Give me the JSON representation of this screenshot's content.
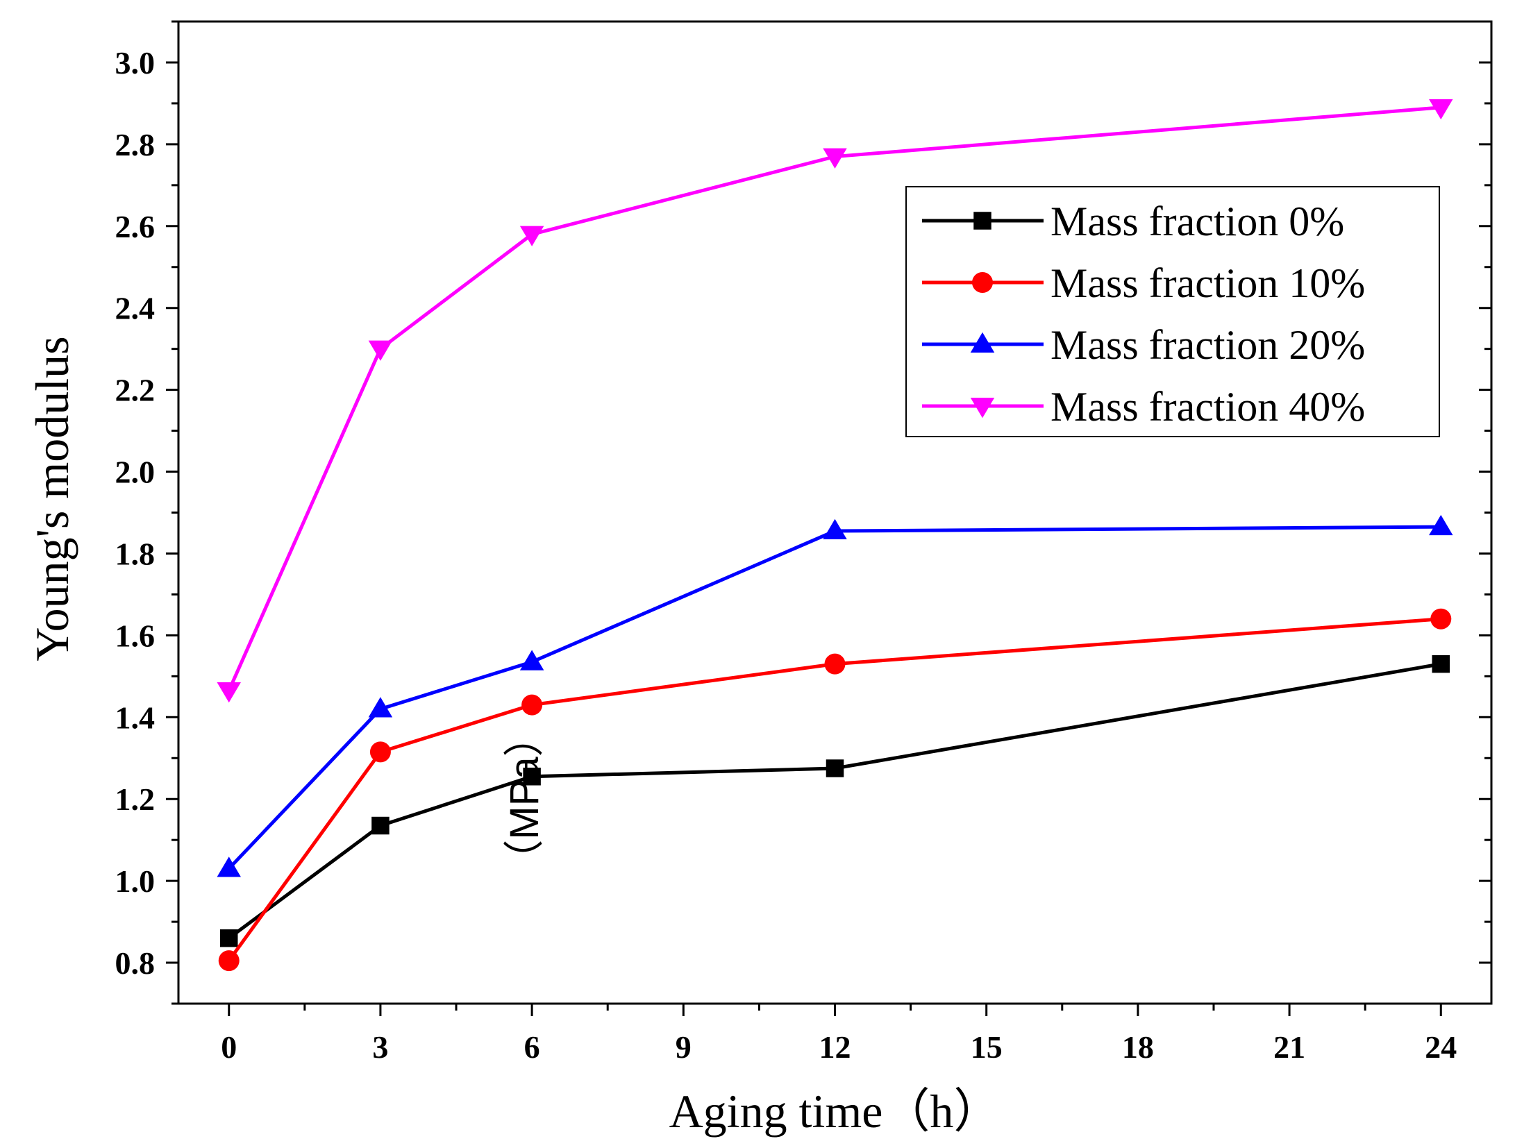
{
  "chart_data": {
    "type": "line",
    "title": "",
    "xlabel": "Aging time（h）",
    "ylabel": "Young's modulus",
    "ylabel_unit": "（MPa）",
    "xlim": [
      -1,
      25
    ],
    "ylim": [
      0.7,
      3.1
    ],
    "x_ticks": [
      0,
      3,
      6,
      9,
      12,
      15,
      18,
      21,
      24
    ],
    "x_tick_labels": [
      "0",
      "3",
      "6",
      "9",
      "12",
      "15",
      "18",
      "21",
      "24"
    ],
    "y_ticks": [
      0.8,
      1.0,
      1.2,
      1.4,
      1.6,
      1.8,
      2.0,
      2.2,
      2.4,
      2.6,
      2.8,
      3.0
    ],
    "y_tick_labels": [
      "0.8",
      "1.0",
      "1.2",
      "1.4",
      "1.6",
      "1.8",
      "2.0",
      "2.2",
      "2.4",
      "2.6",
      "2.8",
      "3.0"
    ],
    "legend_position": "top-right",
    "grid": false,
    "x": [
      0,
      3,
      6,
      12,
      24
    ],
    "series": [
      {
        "name": "Mass fraction 0%",
        "color": "#000000",
        "marker": "square",
        "values": [
          0.86,
          1.135,
          1.255,
          1.275,
          1.53
        ]
      },
      {
        "name": "Mass fraction 10%",
        "color": "#ff0000",
        "marker": "circle",
        "values": [
          0.805,
          1.315,
          1.43,
          1.53,
          1.64
        ]
      },
      {
        "name": "Mass fraction 20%",
        "color": "#0000ff",
        "marker": "triangle-up",
        "values": [
          1.03,
          1.42,
          1.535,
          1.855,
          1.865
        ]
      },
      {
        "name": "Mass fraction 40%",
        "color": "#ff00ff",
        "marker": "triangle-down",
        "values": [
          1.465,
          2.3,
          2.58,
          2.77,
          2.89
        ]
      }
    ]
  }
}
